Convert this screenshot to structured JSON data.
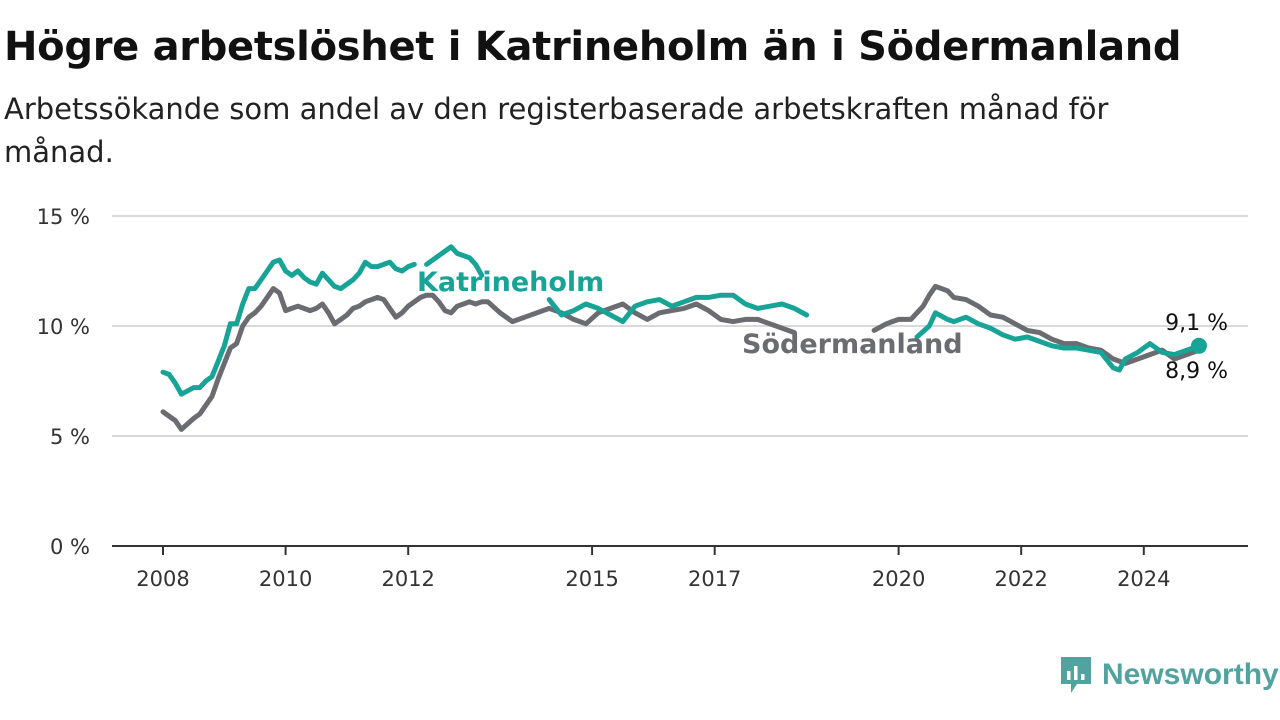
{
  "title": "Högre arbetslöshet i Katrineholm än i Södermanland",
  "subtitle": "Arbetssökande som andel av den registerbaserade arbetskraften månad för månad.",
  "brand": {
    "name": "Newsworthy",
    "color": "#52a3a0"
  },
  "colors": {
    "katrineholm": "#18a397",
    "sodermanland": "#6b6b72",
    "grid": "#d9d9d9",
    "axis": "#333333"
  },
  "chart_data": {
    "type": "line",
    "title": "Högre arbetslöshet i Katrineholm än i Södermanland",
    "xlabel": "",
    "ylabel": "",
    "ylim": [
      0,
      15
    ],
    "y_ticks": [
      0,
      5,
      10,
      15
    ],
    "y_tick_labels": [
      "0 %",
      "5 %",
      "10 %",
      "15 %"
    ],
    "x_ticks": [
      2008,
      2010,
      2012,
      2015,
      2017,
      2020,
      2022,
      2024
    ],
    "x_tick_labels": [
      "2008",
      "2010",
      "2012",
      "2015",
      "2017",
      "2020",
      "2022",
      "2024"
    ],
    "grid": true,
    "series": [
      {
        "name": "Katrineholm",
        "color": "#18a397",
        "end_label": "9,1 %",
        "x": [
          2008.0,
          2008.1,
          2008.2,
          2008.3,
          2008.5,
          2008.6,
          2008.7,
          2008.8,
          2008.9,
          2009.0,
          2009.1,
          2009.2,
          2009.3,
          2009.4,
          2009.5,
          2009.6,
          2009.7,
          2009.8,
          2009.9,
          2010.0,
          2010.1,
          2010.2,
          2010.3,
          2010.4,
          2010.5,
          2010.6,
          2010.7,
          2010.8,
          2010.9,
          2011.0,
          2011.1,
          2011.2,
          2011.3,
          2011.4,
          2011.5,
          2011.6,
          2011.7,
          2011.8,
          2011.9,
          2012.0,
          2012.1,
          null,
          2012.3,
          2012.5,
          2012.7,
          2012.8,
          2012.9,
          2013.0,
          2013.1,
          2013.2,
          null,
          2014.3,
          2014.5,
          2014.7,
          2014.9,
          2015.1,
          2015.3,
          2015.5,
          2015.7,
          2015.9,
          2016.1,
          2016.3,
          2016.5,
          2016.7,
          2016.9,
          2017.1,
          2017.3,
          2017.5,
          2017.7,
          2017.9,
          2018.1,
          2018.3,
          2018.5,
          null,
          2020.3,
          2020.5,
          2020.6,
          2020.8,
          2020.9,
          2021.1,
          2021.3,
          2021.5,
          2021.7,
          2021.9,
          2022.1,
          2022.3,
          2022.5,
          2022.7,
          2022.9,
          2023.1,
          2023.3,
          2023.5,
          2023.6,
          2023.7,
          2023.9,
          2024.1,
          2024.3,
          2024.5,
          2024.7,
          2024.8,
          2024.9
        ],
        "values": [
          7.9,
          7.8,
          7.4,
          6.9,
          7.2,
          7.2,
          7.5,
          7.7,
          8.4,
          9.1,
          10.1,
          10.1,
          11.0,
          11.7,
          11.7,
          12.1,
          12.5,
          12.9,
          13.0,
          12.5,
          12.3,
          12.5,
          12.2,
          12.0,
          11.9,
          12.4,
          12.1,
          11.8,
          11.7,
          11.9,
          12.1,
          12.4,
          12.9,
          12.7,
          12.7,
          12.8,
          12.9,
          12.6,
          12.5,
          12.7,
          12.8,
          null,
          12.8,
          13.2,
          13.6,
          13.3,
          13.2,
          13.1,
          12.8,
          12.3,
          null,
          11.2,
          10.5,
          10.7,
          11.0,
          10.8,
          10.5,
          10.2,
          10.9,
          11.1,
          11.2,
          10.9,
          11.1,
          11.3,
          11.3,
          11.4,
          11.4,
          11.0,
          10.8,
          10.9,
          11.0,
          10.8,
          10.5,
          null,
          9.5,
          10.0,
          10.6,
          10.3,
          10.2,
          10.4,
          10.1,
          9.9,
          9.6,
          9.4,
          9.5,
          9.3,
          9.1,
          9.0,
          9.0,
          8.9,
          8.8,
          8.1,
          8.0,
          8.5,
          8.8,
          9.2,
          8.8,
          8.7,
          8.9,
          9.0,
          9.1
        ]
      },
      {
        "name": "Södermanland",
        "color": "#6b6b72",
        "end_label": "8,9 %",
        "x": [
          2008.0,
          2008.1,
          2008.2,
          2008.3,
          2008.5,
          2008.6,
          2008.7,
          2008.8,
          2008.9,
          2009.0,
          2009.1,
          2009.2,
          2009.3,
          2009.4,
          2009.5,
          2009.6,
          2009.7,
          2009.8,
          2009.9,
          2010.0,
          2010.1,
          2010.2,
          2010.3,
          2010.4,
          2010.5,
          2010.6,
          2010.7,
          2010.8,
          2010.9,
          2011.0,
          2011.1,
          2011.2,
          2011.3,
          2011.4,
          2011.5,
          2011.6,
          2011.7,
          2011.8,
          2011.9,
          2012.0,
          2012.1,
          2012.2,
          2012.3,
          2012.4,
          2012.5,
          2012.6,
          2012.7,
          2012.8,
          2012.9,
          2013.0,
          2013.1,
          2013.2,
          2013.3,
          2013.5,
          2013.7,
          2013.9,
          2014.1,
          2014.3,
          2014.5,
          2014.7,
          2014.9,
          2015.1,
          2015.3,
          2015.5,
          2015.7,
          2015.9,
          2016.1,
          2016.3,
          2016.5,
          2016.7,
          2016.9,
          2017.1,
          2017.3,
          2017.5,
          2017.7,
          2017.9,
          2018.1,
          2018.3,
          null,
          2019.6,
          2019.8,
          2020.0,
          2020.2,
          2020.4,
          2020.5,
          2020.6,
          2020.8,
          2020.9,
          2021.1,
          2021.3,
          2021.5,
          2021.7,
          2021.9,
          2022.1,
          2022.3,
          2022.5,
          2022.7,
          2022.9,
          2023.1,
          2023.3,
          2023.5,
          2023.7,
          2023.9,
          2024.1,
          2024.3,
          2024.5,
          2024.7,
          2024.9
        ],
        "values": [
          6.1,
          5.9,
          5.7,
          5.3,
          5.8,
          6.0,
          6.4,
          6.8,
          7.6,
          8.3,
          9.0,
          9.2,
          10.0,
          10.4,
          10.6,
          10.9,
          11.3,
          11.7,
          11.5,
          10.7,
          10.8,
          10.9,
          10.8,
          10.7,
          10.8,
          11.0,
          10.6,
          10.1,
          10.3,
          10.5,
          10.8,
          10.9,
          11.1,
          11.2,
          11.3,
          11.2,
          10.8,
          10.4,
          10.6,
          10.9,
          11.1,
          11.3,
          11.4,
          11.4,
          11.1,
          10.7,
          10.6,
          10.9,
          11.0,
          11.1,
          11.0,
          11.1,
          11.1,
          10.6,
          10.2,
          10.4,
          10.6,
          10.8,
          10.6,
          10.3,
          10.1,
          10.6,
          10.8,
          11.0,
          10.6,
          10.3,
          10.6,
          10.7,
          10.8,
          11.0,
          10.7,
          10.3,
          10.2,
          10.3,
          10.3,
          10.1,
          9.9,
          9.7,
          null,
          9.8,
          10.1,
          10.3,
          10.3,
          10.9,
          11.4,
          11.8,
          11.6,
          11.3,
          11.2,
          10.9,
          10.5,
          10.4,
          10.1,
          9.8,
          9.7,
          9.4,
          9.2,
          9.2,
          9.0,
          8.9,
          8.5,
          8.3,
          8.5,
          8.7,
          8.9,
          8.5,
          8.7,
          8.9
        ]
      }
    ],
    "annotations": [
      {
        "text": "Katrineholm",
        "series": "Katrineholm"
      },
      {
        "text": "Södermanland",
        "series": "Södermanland"
      }
    ]
  }
}
